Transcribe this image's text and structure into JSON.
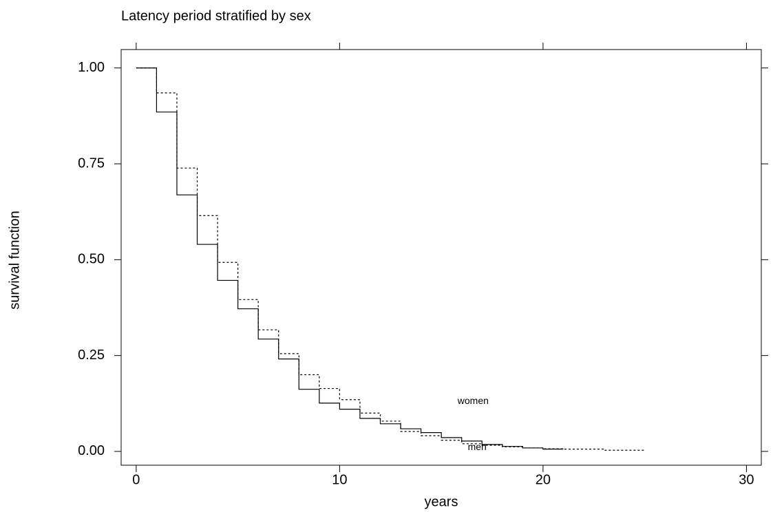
{
  "chart_data": {
    "type": "step",
    "title": "Latency period stratified by sex",
    "x_label": "years",
    "y_label": "survival function",
    "xlim": [
      -0.74,
      30.73
    ],
    "ylim": [
      -0.036,
      1.048
    ],
    "xticks": [
      0,
      10,
      20,
      30
    ],
    "yticks": [
      {
        "value": 0,
        "label": "0.00"
      },
      0.25,
      {
        "value": 0.5,
        "label": "0.50"
      },
      0.75,
      {
        "value": 1,
        "label": "1.00"
      }
    ],
    "grid": false,
    "series": [
      {
        "name": "men",
        "color": "#000000",
        "dash": "solid",
        "x": [
          0,
          1,
          2,
          3,
          4,
          5,
          6,
          7,
          8,
          9,
          10,
          11,
          12,
          13,
          14,
          15,
          16,
          17,
          18,
          19,
          20,
          21
        ],
        "values": [
          1.0,
          0.885,
          0.669,
          0.54,
          0.446,
          0.372,
          0.293,
          0.241,
          0.162,
          0.126,
          0.11,
          0.086,
          0.072,
          0.059,
          0.049,
          0.036,
          0.027,
          0.018,
          0.013,
          0.009,
          0.006,
          0.006
        ]
      },
      {
        "name": "women",
        "color": "#000000",
        "dash": "dotted",
        "x": [
          0,
          1,
          2,
          3,
          4,
          5,
          6,
          7,
          8,
          9,
          10,
          11,
          12,
          13,
          14,
          15,
          16,
          17,
          18,
          19,
          20,
          21,
          23,
          25
        ],
        "values": [
          1.0,
          0.935,
          0.739,
          0.615,
          0.493,
          0.396,
          0.317,
          0.255,
          0.2,
          0.164,
          0.135,
          0.1,
          0.079,
          0.052,
          0.041,
          0.029,
          0.02,
          0.016,
          0.012,
          0.009,
          0.007,
          0.006,
          0.003,
          0.003
        ]
      }
    ]
  }
}
